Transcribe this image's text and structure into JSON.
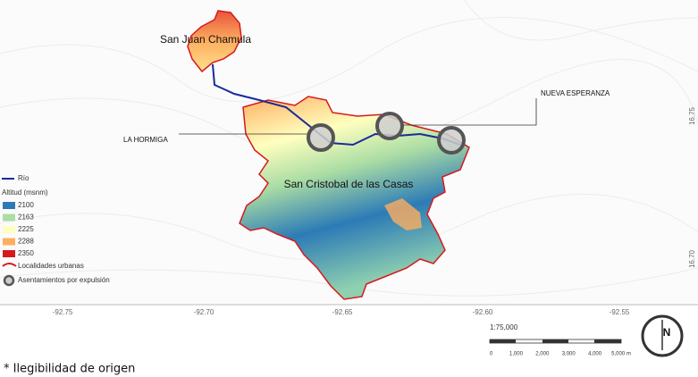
{
  "map": {
    "places": {
      "chamula": "San Juan Chamula",
      "cristobal": "San Cristobal de las Casas"
    },
    "callouts": {
      "hormiga": "LA HORMIGA",
      "esperanza": "NUEVA ESPERANZA"
    },
    "longitudes": [
      "-92.75",
      "-92.70",
      "-92.65",
      "-92.60",
      "-92.55"
    ],
    "latitudes": [
      "16.75",
      "16.70"
    ],
    "legend": {
      "river": "Río",
      "altitude_title": "Altitud (msnm)",
      "altitudes": [
        {
          "label": "2100",
          "color": "#2c7bb6"
        },
        {
          "label": "2163",
          "color": "#abdda4"
        },
        {
          "label": "2225",
          "color": "#ffffbf"
        },
        {
          "label": "2288",
          "color": "#fdae61"
        },
        {
          "label": "2350",
          "color": "#d7191c"
        }
      ],
      "urban": "Localidades urbanas",
      "settlements": "Asentamientos por expulsión"
    },
    "scale": {
      "ratio": "1:75,000",
      "ticks": [
        "0",
        "1,000",
        "2,000",
        "3,000",
        "4,000",
        "5,000 m"
      ]
    },
    "north": "N",
    "footnote": "* Ilegibilidad de origen"
  }
}
